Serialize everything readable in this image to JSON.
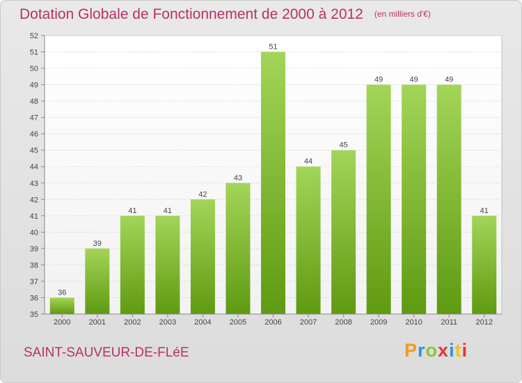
{
  "header": {
    "title": "Dotation Globale de Fonctionnement de 2000 à 2012",
    "unit": "(en milliers d'€)"
  },
  "footer": {
    "commune": "SAINT-SAUVEUR-DE-FLéE",
    "logo": "Proxiti"
  },
  "colors": {
    "bar_top": "#a3d558",
    "bar_bottom": "#5f9a12",
    "title": "#b8306a",
    "background": "#e3e3e3"
  },
  "chart_data": {
    "type": "bar",
    "title": "Dotation Globale de Fonctionnement de 2000 à 2012",
    "subtitle": "(en milliers d'€)",
    "categories": [
      "2000",
      "2001",
      "2002",
      "2003",
      "2004",
      "2005",
      "2006",
      "2007",
      "2008",
      "2009",
      "2010",
      "2011",
      "2012"
    ],
    "values": [
      36,
      39,
      41,
      41,
      42,
      43,
      51,
      44,
      45,
      49,
      49,
      49,
      41
    ],
    "ylim": [
      35,
      52
    ],
    "yticks": [
      35,
      36,
      37,
      38,
      39,
      40,
      41,
      42,
      43,
      44,
      45,
      46,
      47,
      48,
      49,
      50,
      51,
      52
    ],
    "grid": true,
    "data_labels": true,
    "legend": "none"
  }
}
